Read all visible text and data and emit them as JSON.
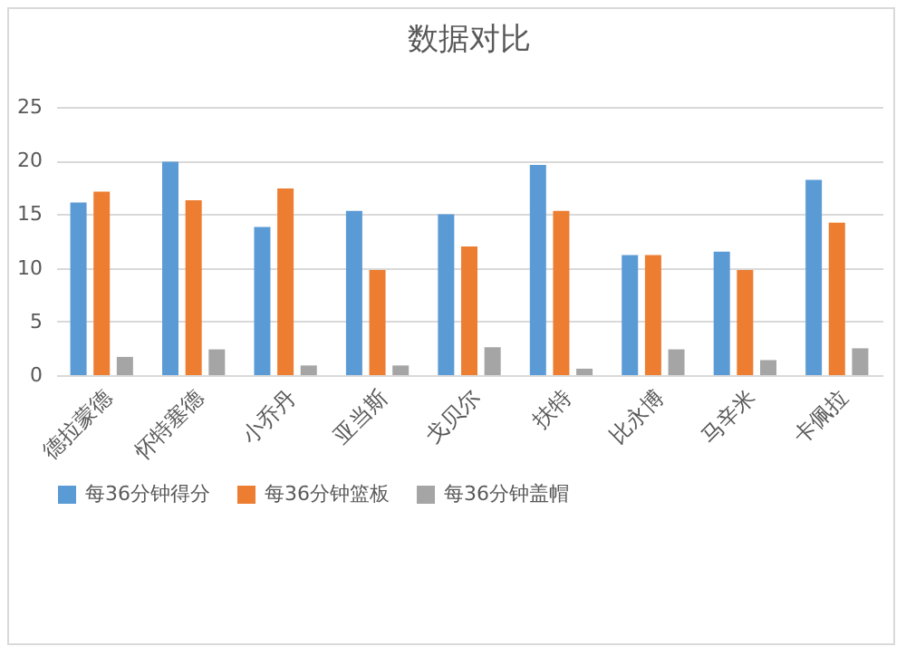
{
  "chart_data": {
    "type": "bar",
    "title": "数据对比",
    "categories": [
      "德拉蒙德",
      "怀特塞德",
      "小乔丹",
      "亚当斯",
      "戈贝尔",
      "扶特",
      "比永博",
      "马辛米",
      "卡佩拉"
    ],
    "series": [
      {
        "name": "每36分钟得分",
        "color": "#5b9bd5",
        "values": [
          16.1,
          19.9,
          13.8,
          15.3,
          15.0,
          19.6,
          11.2,
          11.5,
          18.2
        ]
      },
      {
        "name": "每36分钟篮板",
        "color": "#ed7d31",
        "values": [
          17.1,
          16.3,
          17.4,
          9.8,
          12.0,
          15.3,
          11.2,
          9.8,
          14.2
        ]
      },
      {
        "name": "每36分钟盖帽",
        "color": "#a5a5a5",
        "values": [
          1.7,
          2.4,
          0.9,
          0.9,
          2.6,
          0.6,
          2.4,
          1.4,
          2.5
        ]
      }
    ],
    "ylim": [
      0,
      25
    ],
    "yticks": [
      0,
      5,
      10,
      15,
      20,
      25
    ],
    "grid": "y",
    "legend": "bottom"
  }
}
